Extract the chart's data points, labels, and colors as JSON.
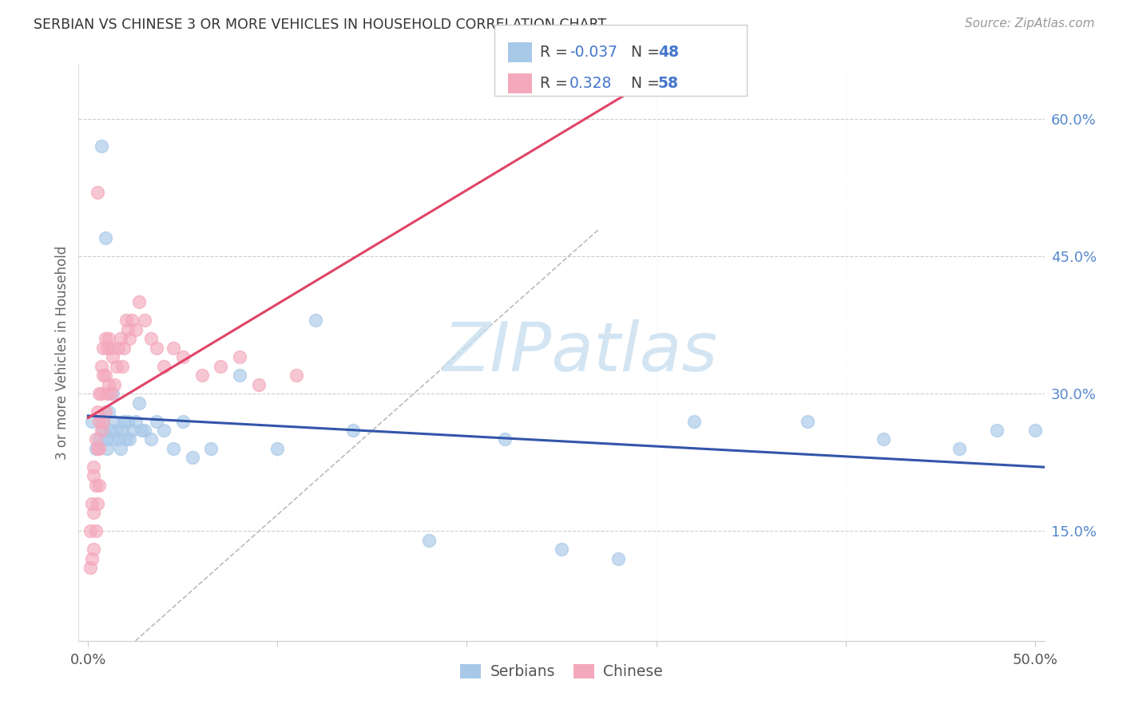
{
  "title": "SERBIAN VS CHINESE 3 OR MORE VEHICLES IN HOUSEHOLD CORRELATION CHART",
  "source": "Source: ZipAtlas.com",
  "ylabel": "3 or more Vehicles in Household",
  "xlim": [
    0.0,
    0.505
  ],
  "ylim": [
    0.03,
    0.66
  ],
  "serbians_R": -0.037,
  "serbians_N": 48,
  "chinese_R": 0.328,
  "chinese_N": 58,
  "serbians_color": "#a8c8e8",
  "chinese_color": "#f4a8bc",
  "trendline_serbian_color": "#3355aa",
  "trendline_chinese_color": "#e04468",
  "diag_color": "#bbbbbb",
  "watermark_color": "#c8dff0",
  "legend_serbian_label": "Serbians",
  "legend_chinese_label": "Chinese",
  "right_tick_color": "#5588cc",
  "serbians_x": [
    0.002,
    0.004,
    0.006,
    0.007,
    0.008,
    0.008,
    0.009,
    0.01,
    0.01,
    0.011,
    0.012,
    0.013,
    0.013,
    0.014,
    0.015,
    0.016,
    0.017,
    0.018,
    0.019,
    0.02,
    0.021,
    0.022,
    0.023,
    0.025,
    0.027,
    0.028,
    0.03,
    0.033,
    0.036,
    0.04,
    0.045,
    0.05,
    0.055,
    0.065,
    0.08,
    0.1,
    0.12,
    0.14,
    0.18,
    0.22,
    0.25,
    0.28,
    0.32,
    0.38,
    0.42,
    0.46,
    0.48,
    0.5
  ],
  "serbians_y": [
    0.27,
    0.24,
    0.25,
    0.57,
    0.27,
    0.26,
    0.47,
    0.25,
    0.24,
    0.28,
    0.26,
    0.3,
    0.25,
    0.27,
    0.26,
    0.25,
    0.24,
    0.26,
    0.27,
    0.25,
    0.27,
    0.25,
    0.26,
    0.27,
    0.29,
    0.26,
    0.26,
    0.25,
    0.27,
    0.26,
    0.24,
    0.27,
    0.23,
    0.24,
    0.32,
    0.24,
    0.38,
    0.26,
    0.14,
    0.25,
    0.13,
    0.12,
    0.27,
    0.27,
    0.25,
    0.24,
    0.26,
    0.26
  ],
  "chinese_x": [
    0.001,
    0.001,
    0.002,
    0.002,
    0.003,
    0.003,
    0.003,
    0.003,
    0.004,
    0.004,
    0.004,
    0.005,
    0.005,
    0.005,
    0.005,
    0.006,
    0.006,
    0.006,
    0.006,
    0.007,
    0.007,
    0.007,
    0.008,
    0.008,
    0.008,
    0.009,
    0.009,
    0.009,
    0.01,
    0.01,
    0.011,
    0.011,
    0.012,
    0.012,
    0.013,
    0.014,
    0.015,
    0.016,
    0.017,
    0.018,
    0.019,
    0.02,
    0.021,
    0.022,
    0.023,
    0.025,
    0.027,
    0.03,
    0.033,
    0.036,
    0.04,
    0.045,
    0.05,
    0.06,
    0.07,
    0.08,
    0.09,
    0.11
  ],
  "chinese_y": [
    0.15,
    0.11,
    0.18,
    0.12,
    0.22,
    0.21,
    0.17,
    0.13,
    0.25,
    0.2,
    0.15,
    0.52,
    0.28,
    0.24,
    0.18,
    0.3,
    0.27,
    0.24,
    0.2,
    0.33,
    0.3,
    0.26,
    0.35,
    0.32,
    0.27,
    0.36,
    0.32,
    0.28,
    0.35,
    0.3,
    0.36,
    0.31,
    0.35,
    0.3,
    0.34,
    0.31,
    0.33,
    0.35,
    0.36,
    0.33,
    0.35,
    0.38,
    0.37,
    0.36,
    0.38,
    0.37,
    0.4,
    0.38,
    0.36,
    0.35,
    0.33,
    0.35,
    0.34,
    0.32,
    0.33,
    0.34,
    0.31,
    0.32
  ]
}
